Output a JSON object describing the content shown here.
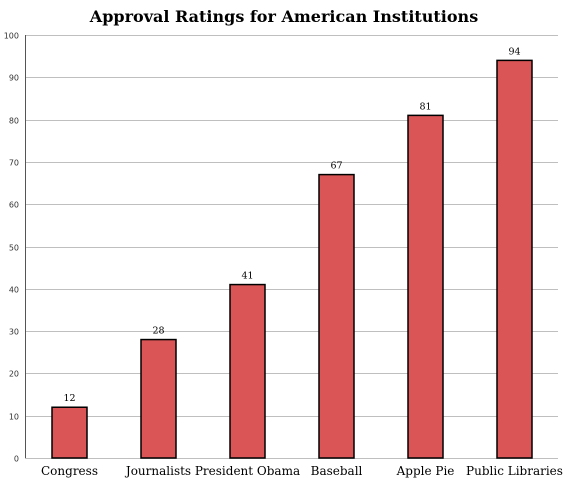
{
  "chart_data": {
    "type": "bar",
    "title": "Approval Ratings for American Institutions",
    "xlabel": "",
    "ylabel": "",
    "categories": [
      "Congress",
      "Journalists",
      "President Obama",
      "Baseball",
      "Apple Pie",
      "Public Libraries"
    ],
    "values": [
      12,
      28,
      41,
      67,
      81,
      94
    ],
    "data_labels": [
      "12",
      "28",
      "41",
      "67",
      "81",
      "94"
    ],
    "ylim": [
      0,
      100
    ],
    "yticks": [
      0,
      10,
      20,
      30,
      40,
      50,
      60,
      70,
      80,
      90,
      100
    ],
    "grid": true,
    "legend": "none",
    "colors": {
      "bar_fill": "#d95556",
      "bar_stroke": "#000000",
      "grid": "#bfbfbf"
    }
  }
}
